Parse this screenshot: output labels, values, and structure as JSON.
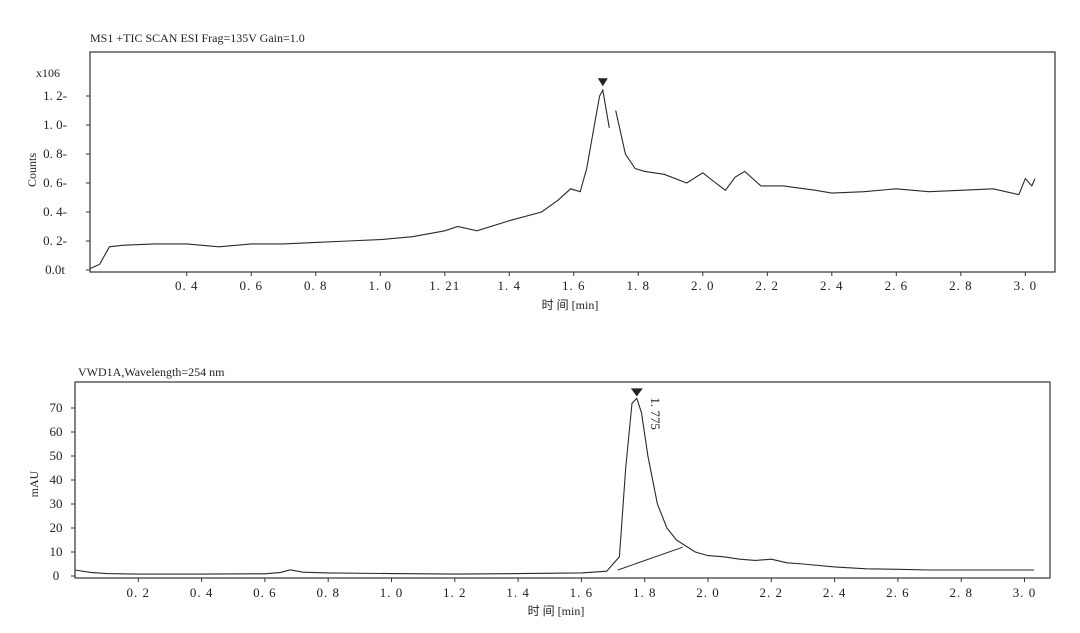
{
  "chart_data": [
    {
      "type": "line",
      "title": "MS1  +TIC  SCAN  ESI  Frag=135V  Gain=1.0",
      "y_multiplier": "x106",
      "ylabel": "Counts",
      "xlabel": "时 间 [min]",
      "xlim": [
        0.1,
        3.03
      ],
      "ylim": [
        0,
        1.35
      ],
      "xticks": [
        {
          "v": 0.4,
          "label": "0. 4"
        },
        {
          "v": 0.6,
          "label": "0. 6"
        },
        {
          "v": 0.8,
          "label": "0. 8"
        },
        {
          "v": 1.0,
          "label": "1. 0"
        },
        {
          "v": 1.2,
          "label": "1. 21"
        },
        {
          "v": 1.4,
          "label": "1. 4"
        },
        {
          "v": 1.6,
          "label": "1. 6"
        },
        {
          "v": 1.8,
          "label": "1. 8"
        },
        {
          "v": 2.0,
          "label": "2. 0"
        },
        {
          "v": 2.2,
          "label": "2. 2"
        },
        {
          "v": 2.4,
          "label": "2. 4"
        },
        {
          "v": 2.6,
          "label": "2. 6"
        },
        {
          "v": 2.8,
          "label": "2. 8"
        },
        {
          "v": 3.0,
          "label": "3. 0"
        }
      ],
      "yticks": [
        {
          "v": 0.0,
          "label": "0.0t"
        },
        {
          "v": 0.2,
          "label": "0. 2-"
        },
        {
          "v": 0.4,
          "label": "0. 4-"
        },
        {
          "v": 0.6,
          "label": "0. 6-"
        },
        {
          "v": 0.8,
          "label": "0. 8-"
        },
        {
          "v": 1.0,
          "label": "1. 0-"
        },
        {
          "v": 1.2,
          "label": "1. 2-"
        }
      ],
      "peak_marker_x": 1.69,
      "series": [
        {
          "values": [
            [
              0.1,
              0.01
            ],
            [
              0.13,
              0.04
            ],
            [
              0.16,
              0.16
            ],
            [
              0.2,
              0.17
            ],
            [
              0.3,
              0.18
            ],
            [
              0.4,
              0.18
            ],
            [
              0.5,
              0.16
            ],
            [
              0.6,
              0.18
            ],
            [
              0.7,
              0.18
            ],
            [
              0.8,
              0.19
            ],
            [
              0.9,
              0.2
            ],
            [
              1.0,
              0.21
            ],
            [
              1.1,
              0.23
            ],
            [
              1.2,
              0.27
            ],
            [
              1.24,
              0.3
            ],
            [
              1.3,
              0.27
            ],
            [
              1.4,
              0.34
            ],
            [
              1.5,
              0.4
            ],
            [
              1.55,
              0.48
            ],
            [
              1.59,
              0.56
            ],
            [
              1.62,
              0.54
            ],
            [
              1.64,
              0.7
            ],
            [
              1.66,
              0.95
            ],
            [
              1.68,
              1.2
            ],
            [
              1.69,
              1.24
            ],
            [
              1.71,
              0.98
            ]
          ]
        },
        {
          "values": [
            [
              1.73,
              1.1
            ],
            [
              1.76,
              0.8
            ],
            [
              1.79,
              0.7
            ],
            [
              1.82,
              0.68
            ],
            [
              1.88,
              0.66
            ],
            [
              1.95,
              0.6
            ],
            [
              2.0,
              0.67
            ],
            [
              2.04,
              0.6
            ],
            [
              2.07,
              0.55
            ],
            [
              2.1,
              0.64
            ],
            [
              2.13,
              0.68
            ],
            [
              2.18,
              0.58
            ],
            [
              2.25,
              0.58
            ],
            [
              2.35,
              0.55
            ],
            [
              2.4,
              0.53
            ],
            [
              2.5,
              0.54
            ],
            [
              2.6,
              0.56
            ],
            [
              2.7,
              0.54
            ],
            [
              2.8,
              0.55
            ],
            [
              2.9,
              0.56
            ],
            [
              2.98,
              0.52
            ],
            [
              3.0,
              0.63
            ],
            [
              3.02,
              0.58
            ],
            [
              3.03,
              0.63
            ]
          ]
        }
      ]
    },
    {
      "type": "line",
      "title": "VWD1A,Wavelength=254   nm",
      "ylabel": "mAU",
      "xlabel": "时 间 [min]",
      "xlim": [
        0.0,
        3.03
      ],
      "ylim": [
        -2,
        77
      ],
      "xticks": [
        {
          "v": 0.2,
          "label": "0. 2"
        },
        {
          "v": 0.4,
          "label": "0. 4"
        },
        {
          "v": 0.6,
          "label": "0. 6"
        },
        {
          "v": 0.8,
          "label": "0. 8"
        },
        {
          "v": 1.0,
          "label": "1. 0"
        },
        {
          "v": 1.2,
          "label": "1. 2"
        },
        {
          "v": 1.4,
          "label": "1. 4"
        },
        {
          "v": 1.6,
          "label": "1. 6"
        },
        {
          "v": 1.8,
          "label": "1. 8"
        },
        {
          "v": 2.0,
          "label": "2. 0"
        },
        {
          "v": 2.2,
          "label": "2. 2"
        },
        {
          "v": 2.4,
          "label": "2. 4"
        },
        {
          "v": 2.6,
          "label": "2. 6"
        },
        {
          "v": 2.8,
          "label": "2. 8"
        },
        {
          "v": 3.0,
          "label": "3. 0"
        }
      ],
      "yticks": [
        {
          "v": 0,
          "label": "0"
        },
        {
          "v": 10,
          "label": "10"
        },
        {
          "v": 20,
          "label": "20"
        },
        {
          "v": 30,
          "label": "30"
        },
        {
          "v": 40,
          "label": "40"
        },
        {
          "v": 50,
          "label": "50"
        },
        {
          "v": 60,
          "label": "60"
        },
        {
          "v": 70,
          "label": "70"
        }
      ],
      "peak_label": "1. 775",
      "peak_x": 1.775,
      "series": [
        {
          "values": [
            [
              0.0,
              2.5
            ],
            [
              0.05,
              1.5
            ],
            [
              0.1,
              1.0
            ],
            [
              0.2,
              0.8
            ],
            [
              0.4,
              0.8
            ],
            [
              0.6,
              0.9
            ],
            [
              0.65,
              1.5
            ],
            [
              0.68,
              2.6
            ],
            [
              0.72,
              1.6
            ],
            [
              0.8,
              1.3
            ],
            [
              1.0,
              1.0
            ],
            [
              1.2,
              0.8
            ],
            [
              1.4,
              1.0
            ],
            [
              1.6,
              1.3
            ],
            [
              1.68,
              2.0
            ],
            [
              1.72,
              8.0
            ],
            [
              1.74,
              45.0
            ],
            [
              1.76,
              72.0
            ],
            [
              1.775,
              74.0
            ],
            [
              1.79,
              68.0
            ],
            [
              1.81,
              50.0
            ],
            [
              1.84,
              30.0
            ],
            [
              1.87,
              20.0
            ],
            [
              1.9,
              15.0
            ],
            [
              1.93,
              12.5
            ],
            [
              1.96,
              10.0
            ],
            [
              2.0,
              8.5
            ],
            [
              2.05,
              8.0
            ],
            [
              2.1,
              7.0
            ],
            [
              2.15,
              6.5
            ],
            [
              2.2,
              7.0
            ],
            [
              2.25,
              5.5
            ],
            [
              2.3,
              5.0
            ],
            [
              2.4,
              3.8
            ],
            [
              2.5,
              3.0
            ],
            [
              2.6,
              2.8
            ],
            [
              2.7,
              2.5
            ],
            [
              2.8,
              2.5
            ],
            [
              2.9,
              2.5
            ],
            [
              3.0,
              2.5
            ],
            [
              3.03,
              2.5
            ]
          ]
        },
        {
          "name": "baseline",
          "values": [
            [
              1.715,
              2.5
            ],
            [
              1.92,
              12.0
            ]
          ]
        }
      ]
    }
  ]
}
